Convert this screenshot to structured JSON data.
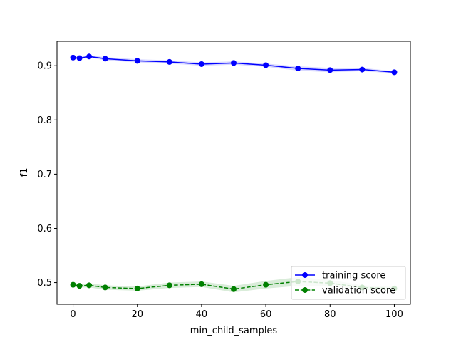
{
  "chart_data": {
    "type": "line",
    "title": "",
    "xlabel": "min_child_samples",
    "ylabel": "f1",
    "xlim": [
      -5,
      105
    ],
    "ylim": [
      0.46,
      0.945
    ],
    "xticks": [
      0,
      20,
      40,
      60,
      80,
      100
    ],
    "yticks": [
      0.5,
      0.6,
      0.7,
      0.8,
      0.9
    ],
    "grid": false,
    "legend_position": "lower-right",
    "x": [
      0,
      2,
      5,
      10,
      20,
      30,
      40,
      50,
      60,
      70,
      80,
      90,
      100
    ],
    "series": [
      {
        "name": "training score",
        "color": "#0000ff",
        "band_color": "#0000ff",
        "linestyle": "solid",
        "marker": "circle",
        "values": [
          0.915,
          0.914,
          0.917,
          0.913,
          0.909,
          0.907,
          0.903,
          0.905,
          0.901,
          0.895,
          0.892,
          0.893,
          0.888
        ],
        "band": [
          0.002,
          0.002,
          0.002,
          0.003,
          0.003,
          0.003,
          0.003,
          0.003,
          0.003,
          0.004,
          0.004,
          0.003,
          0.002
        ]
      },
      {
        "name": "validation score",
        "color": "#008000",
        "band_color": "#008000",
        "linestyle": "dashed",
        "marker": "circle",
        "values": [
          0.496,
          0.494,
          0.495,
          0.491,
          0.489,
          0.495,
          0.497,
          0.488,
          0.496,
          0.502,
          0.499,
          0.491,
          0.489
        ],
        "band": [
          0.003,
          0.003,
          0.004,
          0.004,
          0.004,
          0.005,
          0.005,
          0.006,
          0.007,
          0.008,
          0.006,
          0.004,
          0.003
        ]
      }
    ]
  }
}
